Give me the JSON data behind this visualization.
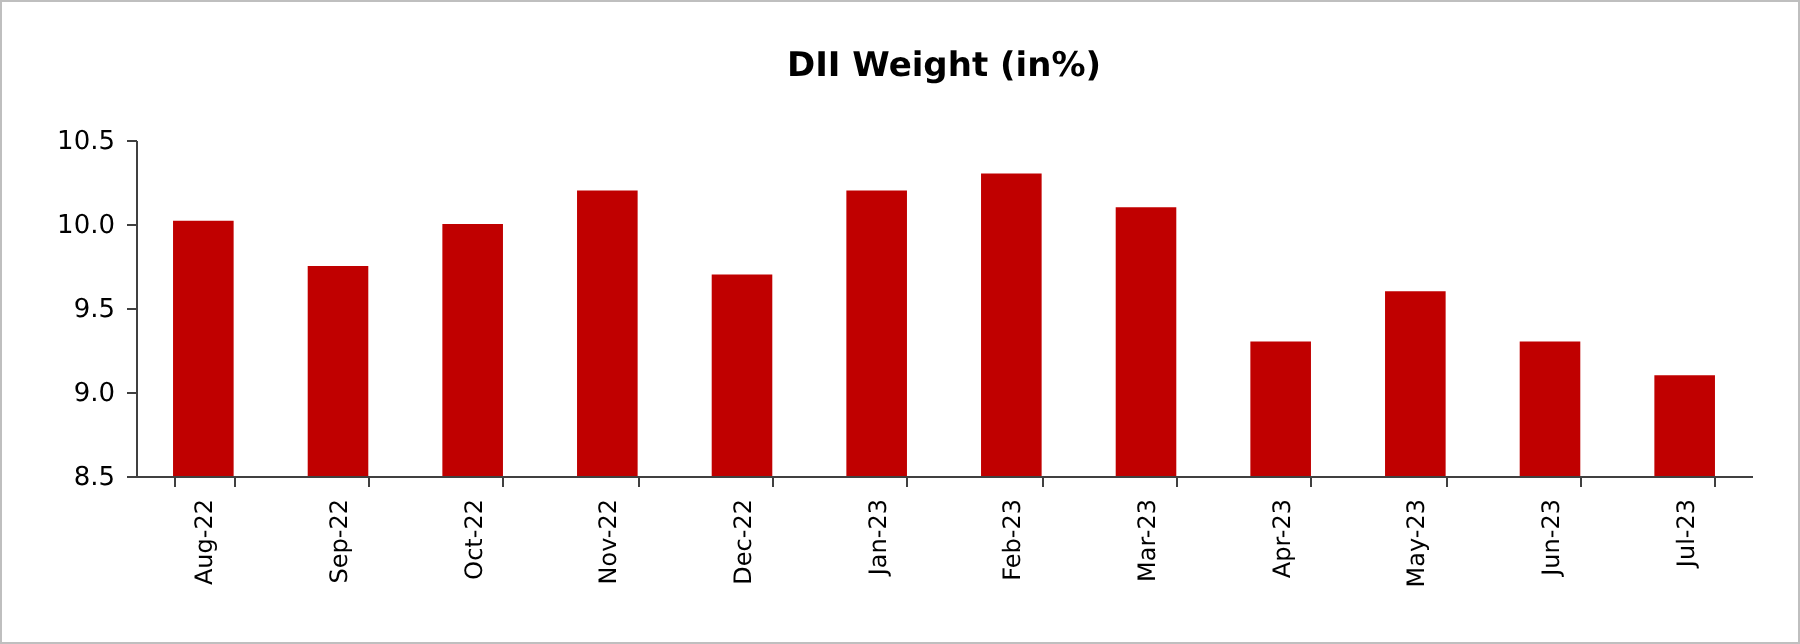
{
  "chart_data": {
    "type": "bar",
    "title": "DII Weight (in%)",
    "categories": [
      "Aug-22",
      "Sep-22",
      "Oct-22",
      "Nov-22",
      "Dec-22",
      "Jan-23",
      "Feb-23",
      "Mar-23",
      "Apr-23",
      "May-23",
      "Jun-23",
      "Jul-23"
    ],
    "values": [
      10.02,
      9.75,
      10.0,
      10.2,
      9.7,
      10.2,
      10.3,
      10.1,
      9.3,
      9.6,
      9.3,
      9.1
    ],
    "color": "#c00000",
    "ylim": [
      8.5,
      10.5
    ],
    "yticks": [
      {
        "value": 8.5,
        "label": "8.5"
      },
      {
        "value": 9,
        "label": "9.0"
      },
      {
        "value": 9.5,
        "label": "9.5"
      },
      {
        "value": 10,
        "label": "10.0"
      },
      {
        "value": 10.5,
        "label": "10.5"
      }
    ],
    "grid": false
  }
}
